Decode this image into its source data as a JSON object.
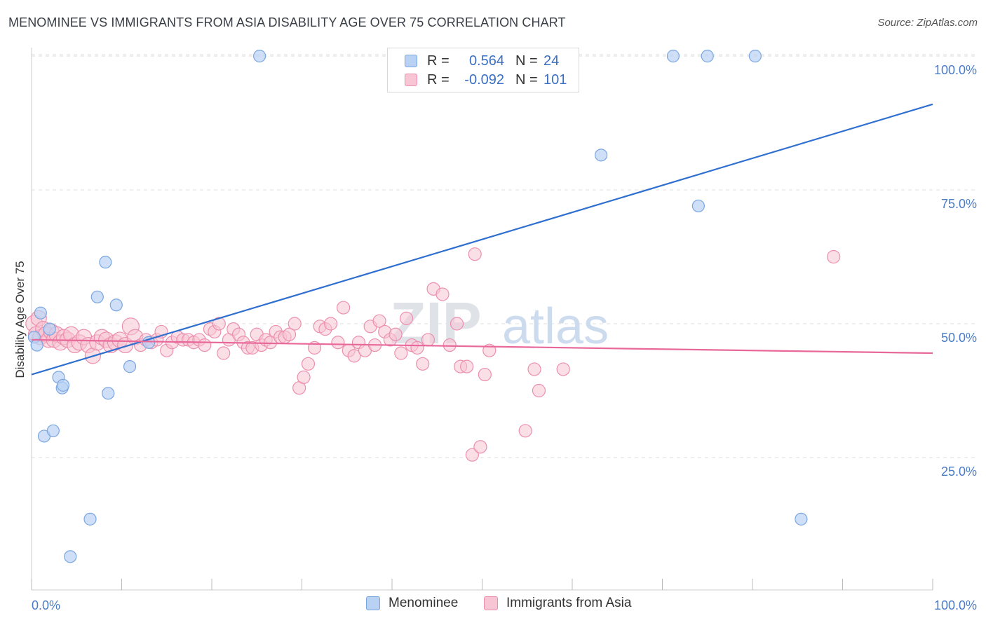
{
  "header": {
    "title": "MENOMINEE VS IMMIGRANTS FROM ASIA DISABILITY AGE OVER 75 CORRELATION CHART",
    "source": "Source: ZipAtlas.com"
  },
  "watermark": {
    "zip": "ZIP",
    "atlas": "atlas"
  },
  "legend": {
    "rows": [
      {
        "r_label": "R =",
        "r_value": "0.564",
        "n_label": "N =",
        "n_value": "24"
      },
      {
        "r_label": "R =",
        "r_value": "-0.092",
        "n_label": "N =",
        "n_value": "101"
      }
    ]
  },
  "bottom_legend": {
    "series1": "Menominee",
    "series2": "Immigrants from Asia"
  },
  "colors": {
    "blue_fill": "#b9d1f3",
    "blue_stroke": "#7aa6e0",
    "blue_line": "#2f6fd0",
    "pink_fill": "#f7c5d4",
    "pink_stroke": "#ec8fae",
    "pink_line": "#e8689a",
    "grid": "#dddddd",
    "tick_text": "#4a7cc7"
  },
  "chart_data": {
    "type": "scatter",
    "title": "MENOMINEE VS IMMIGRANTS FROM ASIA DISABILITY AGE OVER 75 CORRELATION CHART",
    "xlabel": "",
    "ylabel": "Disability Age Over 75",
    "xlim": [
      0,
      100
    ],
    "ylim": [
      0,
      102
    ],
    "x_tick_labels": [
      "0.0%",
      "100.0%"
    ],
    "y_ticks": [
      25,
      50,
      75,
      100
    ],
    "y_tick_labels": [
      "25.0%",
      "50.0%",
      "75.0%",
      "100.0%"
    ],
    "grid": true,
    "series": [
      {
        "name": "Menominee",
        "R": 0.564,
        "N": 24,
        "trend": {
          "x": [
            0,
            100
          ],
          "y": [
            40.5,
            91
          ]
        },
        "points": [
          {
            "x": 0.3,
            "y": 47.5
          },
          {
            "x": 0.6,
            "y": 46
          },
          {
            "x": 1.0,
            "y": 52
          },
          {
            "x": 2.0,
            "y": 49
          },
          {
            "x": 1.4,
            "y": 29
          },
          {
            "x": 2.4,
            "y": 30
          },
          {
            "x": 3.0,
            "y": 40
          },
          {
            "x": 3.4,
            "y": 38
          },
          {
            "x": 3.5,
            "y": 38.5
          },
          {
            "x": 4.3,
            "y": 6.5
          },
          {
            "x": 6.5,
            "y": 13.5
          },
          {
            "x": 7.3,
            "y": 55
          },
          {
            "x": 8.2,
            "y": 61.5
          },
          {
            "x": 8.5,
            "y": 37
          },
          {
            "x": 9.4,
            "y": 53.5
          },
          {
            "x": 10.9,
            "y": 42
          },
          {
            "x": 13.0,
            "y": 46.5
          },
          {
            "x": 25.3,
            "y": 100
          },
          {
            "x": 63.2,
            "y": 81.5
          },
          {
            "x": 71.2,
            "y": 100
          },
          {
            "x": 74.0,
            "y": 72
          },
          {
            "x": 75.0,
            "y": 100
          },
          {
            "x": 80.3,
            "y": 100
          },
          {
            "x": 85.4,
            "y": 13.5
          }
        ]
      },
      {
        "name": "Immigrants from Asia",
        "R": -0.092,
        "N": 101,
        "trend": {
          "x": [
            0,
            100
          ],
          "y": [
            47,
            44.5
          ]
        },
        "points": [
          {
            "x": 0.3,
            "y": 50
          },
          {
            "x": 0.5,
            "y": 48
          },
          {
            "x": 0.8,
            "y": 51
          },
          {
            "x": 1.0,
            "y": 47.5
          },
          {
            "x": 1.3,
            "y": 49
          },
          {
            "x": 1.6,
            "y": 48
          },
          {
            "x": 1.9,
            "y": 47
          },
          {
            "x": 2.2,
            "y": 48.5
          },
          {
            "x": 2.5,
            "y": 47
          },
          {
            "x": 2.8,
            "y": 48
          },
          {
            "x": 3.2,
            "y": 46.5
          },
          {
            "x": 3.6,
            "y": 47.5
          },
          {
            "x": 4.0,
            "y": 47
          },
          {
            "x": 4.4,
            "y": 48
          },
          {
            "x": 4.8,
            "y": 46
          },
          {
            "x": 5.3,
            "y": 46.5
          },
          {
            "x": 5.8,
            "y": 47.5
          },
          {
            "x": 6.3,
            "y": 46
          },
          {
            "x": 6.8,
            "y": 44
          },
          {
            "x": 7.3,
            "y": 46.5
          },
          {
            "x": 7.8,
            "y": 47.5
          },
          {
            "x": 8.3,
            "y": 47
          },
          {
            "x": 8.8,
            "y": 46
          },
          {
            "x": 9.3,
            "y": 46.5
          },
          {
            "x": 9.8,
            "y": 47
          },
          {
            "x": 10.4,
            "y": 46
          },
          {
            "x": 11.0,
            "y": 49.5
          },
          {
            "x": 11.5,
            "y": 47.5
          },
          {
            "x": 12.1,
            "y": 46
          },
          {
            "x": 12.7,
            "y": 47
          },
          {
            "x": 13.3,
            "y": 46.5
          },
          {
            "x": 13.9,
            "y": 47
          },
          {
            "x": 14.4,
            "y": 48.5
          },
          {
            "x": 15.0,
            "y": 45
          },
          {
            "x": 15.6,
            "y": 46.5
          },
          {
            "x": 16.2,
            "y": 47.5
          },
          {
            "x": 16.8,
            "y": 47
          },
          {
            "x": 17.4,
            "y": 47
          },
          {
            "x": 18.0,
            "y": 46.5
          },
          {
            "x": 18.6,
            "y": 47
          },
          {
            "x": 19.2,
            "y": 46
          },
          {
            "x": 19.8,
            "y": 49
          },
          {
            "x": 20.3,
            "y": 48.5
          },
          {
            "x": 20.8,
            "y": 50
          },
          {
            "x": 21.3,
            "y": 44.5
          },
          {
            "x": 21.9,
            "y": 47
          },
          {
            "x": 22.4,
            "y": 49
          },
          {
            "x": 23.0,
            "y": 48
          },
          {
            "x": 23.5,
            "y": 46.5
          },
          {
            "x": 24.0,
            "y": 45.5
          },
          {
            "x": 24.5,
            "y": 45.5
          },
          {
            "x": 25.0,
            "y": 48
          },
          {
            "x": 25.5,
            "y": 46
          },
          {
            "x": 26.0,
            "y": 47
          },
          {
            "x": 26.5,
            "y": 46.5
          },
          {
            "x": 27.1,
            "y": 48.5
          },
          {
            "x": 27.6,
            "y": 47.5
          },
          {
            "x": 28.1,
            "y": 47.5
          },
          {
            "x": 28.6,
            "y": 48
          },
          {
            "x": 29.2,
            "y": 50
          },
          {
            "x": 29.7,
            "y": 38
          },
          {
            "x": 30.2,
            "y": 40
          },
          {
            "x": 30.7,
            "y": 42.5
          },
          {
            "x": 31.4,
            "y": 45.5
          },
          {
            "x": 32.0,
            "y": 49.5
          },
          {
            "x": 32.6,
            "y": 49
          },
          {
            "x": 33.2,
            "y": 50
          },
          {
            "x": 34.0,
            "y": 46.5
          },
          {
            "x": 34.6,
            "y": 53
          },
          {
            "x": 35.2,
            "y": 45
          },
          {
            "x": 35.8,
            "y": 44
          },
          {
            "x": 36.3,
            "y": 46.5
          },
          {
            "x": 37.0,
            "y": 45
          },
          {
            "x": 37.6,
            "y": 49.5
          },
          {
            "x": 38.1,
            "y": 46
          },
          {
            "x": 38.6,
            "y": 50.5
          },
          {
            "x": 39.2,
            "y": 48.5
          },
          {
            "x": 39.8,
            "y": 47
          },
          {
            "x": 40.4,
            "y": 48
          },
          {
            "x": 41.0,
            "y": 44.5
          },
          {
            "x": 41.6,
            "y": 51
          },
          {
            "x": 42.2,
            "y": 46
          },
          {
            "x": 42.8,
            "y": 45.5
          },
          {
            "x": 43.4,
            "y": 42.5
          },
          {
            "x": 44.0,
            "y": 47
          },
          {
            "x": 44.6,
            "y": 56.5
          },
          {
            "x": 45.6,
            "y": 55.5
          },
          {
            "x": 46.4,
            "y": 46
          },
          {
            "x": 47.2,
            "y": 50
          },
          {
            "x": 47.6,
            "y": 42
          },
          {
            "x": 48.3,
            "y": 42
          },
          {
            "x": 48.9,
            "y": 25.5
          },
          {
            "x": 49.2,
            "y": 63
          },
          {
            "x": 49.8,
            "y": 27
          },
          {
            "x": 50.3,
            "y": 40.5
          },
          {
            "x": 50.8,
            "y": 45
          },
          {
            "x": 54.8,
            "y": 30
          },
          {
            "x": 55.8,
            "y": 41.5
          },
          {
            "x": 56.3,
            "y": 37.5
          },
          {
            "x": 59.0,
            "y": 41.5
          },
          {
            "x": 89.0,
            "y": 62.5
          }
        ]
      }
    ]
  }
}
